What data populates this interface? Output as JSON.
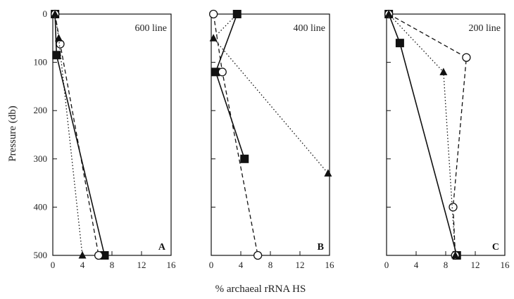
{
  "chart_data": {
    "type": "line",
    "xlabel": "% archaeal rRNA HS",
    "ylabel": "Pressure (db)",
    "xlim": [
      0,
      16
    ],
    "ylim": [
      500,
      0
    ],
    "x_ticks": [
      0,
      4,
      8,
      12,
      16
    ],
    "y_ticks": [
      0,
      100,
      200,
      300,
      400,
      500
    ],
    "grid": false,
    "panels": [
      {
        "title": "600 line",
        "letter": "A",
        "series": [
          {
            "marker": "square",
            "line": "solid",
            "x": [
              0.3,
              0.5,
              7.0
            ],
            "y": [
              0,
              85,
              500
            ]
          },
          {
            "marker": "circle",
            "line": "dashed",
            "x": [
              0.3,
              1.0,
              6.2
            ],
            "y": [
              0,
              62,
              500
            ]
          },
          {
            "marker": "triangle",
            "line": "dotted",
            "x": [
              0.3,
              0.8,
              4.0
            ],
            "y": [
              0,
              50,
              500
            ]
          }
        ]
      },
      {
        "title": "400 line",
        "letter": "B",
        "series": [
          {
            "marker": "square",
            "line": "solid",
            "x": [
              3.5,
              0.6,
              4.5
            ],
            "y": [
              0,
              120,
              300
            ]
          },
          {
            "marker": "circle",
            "line": "dashed",
            "x": [
              0.3,
              1.5,
              6.3
            ],
            "y": [
              0,
              120,
              500
            ]
          },
          {
            "marker": "triangle",
            "line": "dotted",
            "x": [
              3.5,
              0.3,
              15.8
            ],
            "y": [
              0,
              50,
              330
            ]
          }
        ]
      },
      {
        "title": "200 line",
        "letter": "C",
        "series": [
          {
            "marker": "square",
            "line": "solid",
            "x": [
              0.3,
              1.8,
              9.5
            ],
            "y": [
              0,
              60,
              500
            ]
          },
          {
            "marker": "circle",
            "line": "dashed",
            "x": [
              0.3,
              10.8,
              9.0,
              9.3
            ],
            "y": [
              0,
              90,
              400,
              500
            ]
          },
          {
            "marker": "triangle",
            "line": "dotted",
            "x": [
              0.3,
              7.7,
              9.3
            ],
            "y": [
              0,
              120,
              500
            ]
          }
        ]
      }
    ]
  }
}
